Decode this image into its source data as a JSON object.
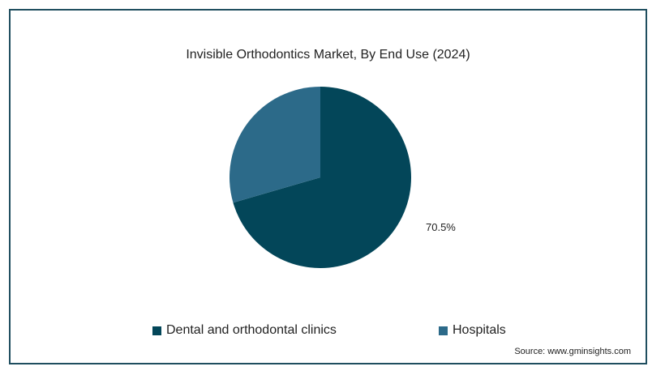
{
  "chart_data": {
    "type": "pie",
    "title": "Invisible Orthodontics Market, By End Use (2024)",
    "series": [
      {
        "name": "Dental and orthodontal clinics",
        "value": 70.5,
        "color": "#034659",
        "label": "70.5%"
      },
      {
        "name": "Hospitals",
        "value": 29.5,
        "color": "#2c6a89",
        "label": ""
      }
    ],
    "legend_position": "bottom"
  },
  "source": "Source: www.gminsights.com"
}
